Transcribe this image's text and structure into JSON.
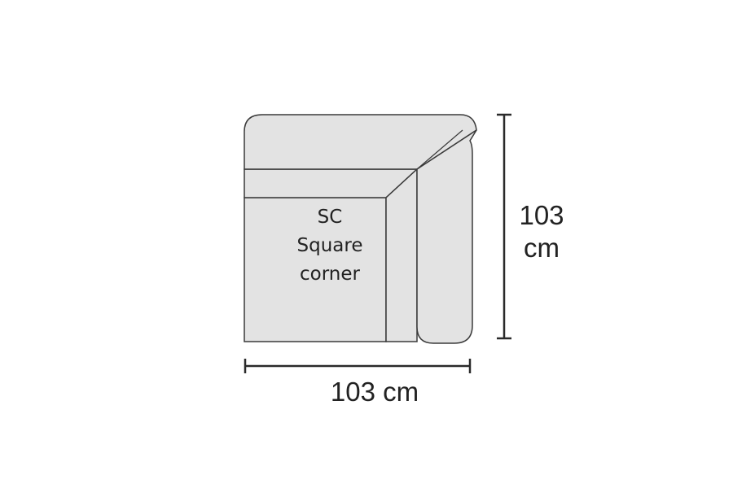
{
  "module": {
    "code": "SC",
    "name_line1": "Square",
    "name_line2": "corner"
  },
  "dimensions": {
    "width": "103 cm",
    "height_value": "103",
    "height_unit": "cm"
  },
  "colors": {
    "fill": "#e3e3e3",
    "stroke": "#3a3a3a",
    "text": "#222222"
  }
}
